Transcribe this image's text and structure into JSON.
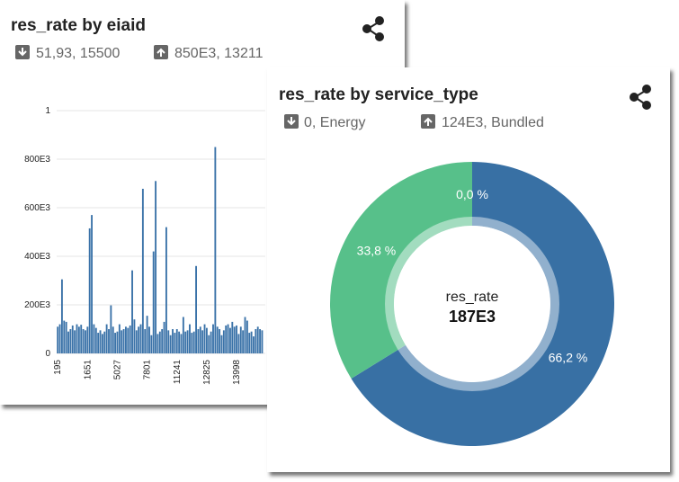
{
  "cards": [
    {
      "title": "res_rate by eiaid",
      "min": "51,93, 15500",
      "max": "850E3, 13211"
    },
    {
      "title": "res_rate by service_type",
      "min": "0, Energy",
      "max": "124E3, Bundled"
    }
  ],
  "chart_data": [
    {
      "type": "bar",
      "color": "#3a72a8",
      "grid": true,
      "ylim": [
        0,
        1000000
      ],
      "yticks": [
        0,
        {
          "value": 200000,
          "label": "200E3"
        },
        {
          "value": 400000,
          "label": "400E3"
        },
        {
          "value": 600000,
          "label": "600E3"
        },
        {
          "value": 800000,
          "label": "800E3"
        },
        {
          "value": 1000000,
          "label": "1"
        }
      ],
      "categories": [
        "195",
        null,
        null,
        null,
        null,
        null,
        null,
        null,
        null,
        null,
        null,
        null,
        null,
        null,
        "1651",
        null,
        null,
        null,
        null,
        null,
        null,
        null,
        null,
        null,
        null,
        null,
        null,
        null,
        "5027",
        null,
        null,
        null,
        null,
        null,
        null,
        null,
        null,
        null,
        null,
        null,
        null,
        null,
        "7801",
        null,
        null,
        null,
        null,
        null,
        null,
        null,
        null,
        null,
        null,
        null,
        null,
        null,
        "11241",
        null,
        null,
        null,
        null,
        null,
        null,
        null,
        null,
        null,
        null,
        null,
        null,
        null,
        "12825",
        null,
        null,
        null,
        null,
        null,
        null,
        null,
        null,
        null,
        null,
        null,
        null,
        null,
        "13998",
        null,
        null,
        null,
        null,
        null,
        null,
        null,
        null,
        null,
        null,
        null,
        null,
        null
      ],
      "values": [
        110000,
        120000,
        305000,
        135000,
        130000,
        90000,
        100000,
        115000,
        95000,
        120000,
        110000,
        118000,
        100000,
        95000,
        110000,
        515000,
        570000,
        120000,
        105000,
        85000,
        95000,
        80000,
        90000,
        120000,
        100000,
        198000,
        110000,
        85000,
        90000,
        120000,
        95000,
        100000,
        110000,
        105000,
        115000,
        342000,
        140000,
        95000,
        110000,
        120000,
        678000,
        100000,
        155000,
        110000,
        75000,
        420000,
        710000,
        80000,
        90000,
        100000,
        130000,
        520000,
        95000,
        75000,
        100000,
        85000,
        100000,
        90000,
        80000,
        150000,
        90000,
        95000,
        120000,
        85000,
        90000,
        360000,
        100000,
        110000,
        95000,
        120000,
        105000,
        75000,
        90000,
        120000,
        850000,
        110000,
        100000,
        75000,
        95000,
        115000,
        120000,
        105000,
        130000,
        110000,
        115000,
        80000,
        110000,
        95000,
        150000,
        135000,
        85000,
        90000,
        70000,
        100000,
        110000,
        100000,
        95000,
        51.93
      ]
    },
    {
      "type": "pie",
      "donut": true,
      "center_label": "res_rate",
      "center_value": "187E3",
      "values": [
        66.2,
        33.8,
        0.0
      ],
      "value_labels": [
        "66,2 %",
        "33,8 %",
        "0,0 %"
      ],
      "colors": [
        "#3870a4",
        "#57c08a",
        "#57c08a"
      ]
    }
  ]
}
